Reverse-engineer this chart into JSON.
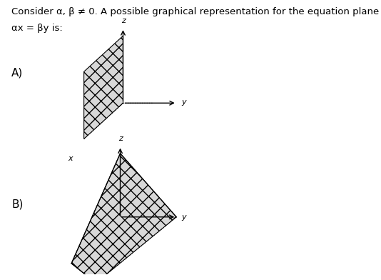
{
  "title_line1": "Consider α, β ≠ 0. A possible graphical representation for the equation plane",
  "title_line2": "αx = βy is:",
  "bg_color": "#ffffff",
  "label_A": "A)",
  "label_B": "B)",
  "label_x": "x",
  "label_y": "y",
  "label_z": "z",
  "plane_face": "#d8d8d8",
  "plane_edge": "#000000",
  "figsize": [
    5.34,
    3.92
  ],
  "dpi": 100
}
